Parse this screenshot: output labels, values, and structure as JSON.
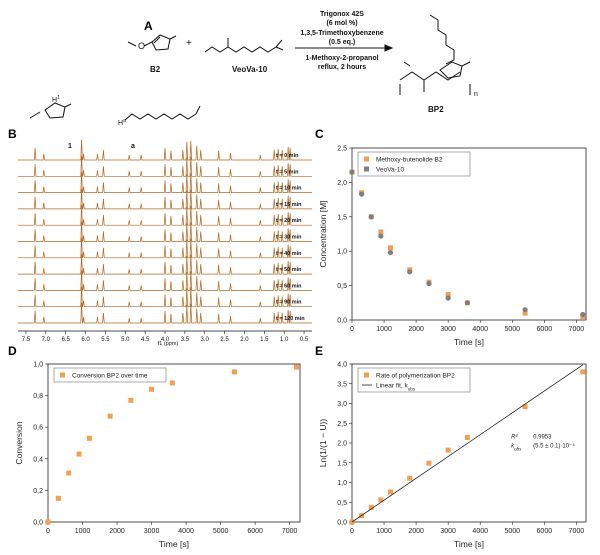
{
  "panel_labels": {
    "a": "A",
    "b": "B",
    "c": "C",
    "d": "D",
    "e": "E"
  },
  "scheme": {
    "reagent1": "B2",
    "reagent2": "VeoVa-10",
    "plus": "+",
    "conditions": [
      "Trigonox 42S",
      "(6 mol %)",
      "1,3,5-Trimethoxybenzene",
      "(0.5 eq.)",
      "1-Methoxy-2-propanol",
      "reflux, 2 hours"
    ],
    "product": "BP2",
    "product_sub": "n",
    "ome_label": "O",
    "nmr_h1": "H",
    "nmr_h1_sup": "1",
    "nmr_ha": "H",
    "nmr_ha_sup": "a"
  },
  "nmr": {
    "peak_labels": [
      "1",
      "a"
    ],
    "times": [
      "t = 0 min",
      "t = 5 min",
      "t = 10 min",
      "t = 15 min",
      "t = 20 min",
      "t = 30 min",
      "t = 40 min",
      "t = 50 min",
      "t = 60 min",
      "t = 90 min",
      "t = 120 min"
    ],
    "axis_ticks": [
      "7.5",
      "7.0",
      "6.5",
      "6.0",
      "5.5",
      "5.0",
      "4.5",
      "4.0",
      "3.5",
      "3.0",
      "2.5",
      "2.0",
      "1.5",
      "1.0",
      "0.5"
    ],
    "axis_label": "f1 (ppm)",
    "color": "#b5651d"
  },
  "chart_data": [
    {
      "id": "C",
      "type": "scatter",
      "xlabel": "Time [s]",
      "ylabel": "Concentration [M]",
      "xlim": [
        0,
        7300
      ],
      "ylim": [
        0,
        2.5
      ],
      "xticks": [
        0,
        1000,
        2000,
        3000,
        4000,
        5000,
        6000,
        7000
      ],
      "yticks": [
        "0,0",
        "0,5",
        "1,0",
        "1,5",
        "2,0",
        "2,5"
      ],
      "ytick_values": [
        0,
        0.5,
        1.0,
        1.5,
        2.0,
        2.5
      ],
      "series": [
        {
          "name": "Methoxy-butenolide B2",
          "color": "#f0a050",
          "points": [
            [
              0,
              2.15
            ],
            [
              300,
              1.85
            ],
            [
              600,
              1.5
            ],
            [
              900,
              1.28
            ],
            [
              1200,
              1.05
            ],
            [
              1800,
              0.73
            ],
            [
              2400,
              0.55
            ],
            [
              3000,
              0.37
            ],
            [
              3600,
              0.25
            ],
            [
              5400,
              0.1
            ],
            [
              7200,
              0.05
            ]
          ]
        },
        {
          "name": "VeoVa-10",
          "color": "#7f7f7f",
          "points": [
            [
              0,
              2.15
            ],
            [
              300,
              1.83
            ],
            [
              600,
              1.5
            ],
            [
              900,
              1.22
            ],
            [
              1200,
              0.98
            ],
            [
              1800,
              0.7
            ],
            [
              2400,
              0.53
            ],
            [
              3000,
              0.32
            ],
            [
              3600,
              0.25
            ],
            [
              5400,
              0.15
            ],
            [
              7200,
              0.08
            ]
          ]
        }
      ]
    },
    {
      "id": "D",
      "type": "scatter",
      "xlabel": "Time [s]",
      "ylabel": "Conversion",
      "xlim": [
        0,
        7300
      ],
      "ylim": [
        0,
        1.0
      ],
      "xticks": [
        0,
        1000,
        2000,
        3000,
        4000,
        5000,
        6000,
        7000
      ],
      "yticks": [
        "0,0",
        "0,2",
        "0,4",
        "0,6",
        "0,8",
        "1,0"
      ],
      "ytick_values": [
        0,
        0.2,
        0.4,
        0.6,
        0.8,
        1.0
      ],
      "series": [
        {
          "name": "Conversion BP2 over time",
          "color": "#f0a050",
          "points": [
            [
              0,
              0.0
            ],
            [
              300,
              0.15
            ],
            [
              600,
              0.31
            ],
            [
              900,
              0.43
            ],
            [
              1200,
              0.53
            ],
            [
              1800,
              0.67
            ],
            [
              2400,
              0.77
            ],
            [
              3000,
              0.84
            ],
            [
              3600,
              0.88
            ],
            [
              5400,
              0.95
            ],
            [
              7200,
              0.98
            ]
          ]
        }
      ]
    },
    {
      "id": "E",
      "type": "scatter",
      "xlabel": "Time [s]",
      "ylabel": "Ln(1/(1 − U))",
      "xlim": [
        0,
        7300
      ],
      "ylim": [
        0,
        4.0
      ],
      "xticks": [
        0,
        1000,
        2000,
        3000,
        4000,
        5000,
        6000,
        7000
      ],
      "yticks": [
        "0,0",
        "0,5",
        "1,0",
        "1,5",
        "2,0",
        "2,5",
        "3,0",
        "3,5",
        "4,0"
      ],
      "ytick_values": [
        0,
        0.5,
        1.0,
        1.5,
        2.0,
        2.5,
        3.0,
        3.5,
        4.0
      ],
      "series": [
        {
          "name": "Rate of polymerization BP2",
          "color": "#f0a050",
          "points": [
            [
              0,
              0.0
            ],
            [
              300,
              0.16
            ],
            [
              600,
              0.37
            ],
            [
              900,
              0.56
            ],
            [
              1200,
              0.76
            ],
            [
              1800,
              1.11
            ],
            [
              2400,
              1.49
            ],
            [
              3000,
              1.82
            ],
            [
              3600,
              2.14
            ],
            [
              5400,
              2.92
            ],
            [
              7200,
              3.8
            ]
          ]
        },
        {
          "name": "Linear fit, k",
          "name_sub": "obs",
          "color": "#222222",
          "line": [
            [
              0,
              0.0
            ],
            [
              7200,
              3.98
            ]
          ]
        }
      ],
      "fit_annotation": {
        "r2_label": "R²",
        "r2_value": "0.9953",
        "k_label": "k",
        "k_sub": "obs",
        "k_value": "(5.5 ± 0.1)·10⁻⁴"
      }
    }
  ]
}
